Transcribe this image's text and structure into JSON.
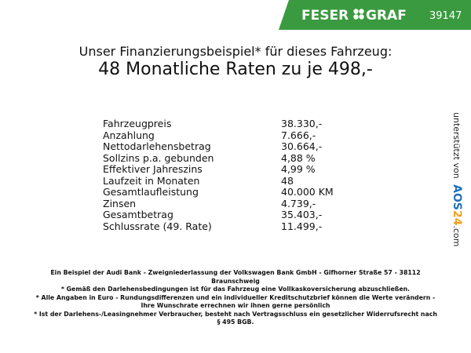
{
  "header": {
    "brand_left": "FESER",
    "brand_right": "GRAF",
    "code": "39147"
  },
  "title": "Unser Finanzierungsbeispiel* für dieses Fahrzeug:",
  "headline": "48 Monatliche Raten zu je 498,-",
  "table": {
    "rows": [
      [
        "Fahrzeugpreis",
        "38.330,-"
      ],
      [
        "Anzahlung",
        "7.666,-"
      ],
      [
        "Nettodarlehensbetrag",
        "30.664,-"
      ],
      [
        "Sollzins p.a. gebunden",
        "4,88 %"
      ],
      [
        "Effektiver Jahreszins",
        "4,99 %"
      ],
      [
        "Laufzeit in Monaten",
        "48"
      ],
      [
        "Gesamtlaufleistung",
        "40.000 KM"
      ],
      [
        "Zinsen",
        "4.739,-"
      ],
      [
        "Gesamtbetrag",
        "35.403,-"
      ],
      [
        "Schlussrate (49. Rate)",
        "11.499,-"
      ]
    ]
  },
  "footnotes": [
    "Ein Beispiel der Audi Bank - Zweigniederlassung der Volkswagen Bank GmbH - Gifhorner Straße 57 - 38112 Braunschweig",
    "* Gemäß den Darlehensbedingungen ist für das Fahrzeug eine Vollkaskoversicherung abzuschließen.",
    "* Alle Angaben in Euro - Rundungsdifferenzen und ein individueller Kreditschutzbrief können die Werte verändern - Ihre Wunschrate errechnen wir ihnen gerne persönlich",
    "* Ist der Darlehens-/Leasingnehmer Verbraucher, besteht nach Vertragsschluss ein gesetzlicher Widerrufsrecht nach § 495 BGB."
  ],
  "sponsor": {
    "prefix": "unterstützt von",
    "brand_a": "AOS",
    "brand_b": "24",
    "suffix": ".com"
  }
}
